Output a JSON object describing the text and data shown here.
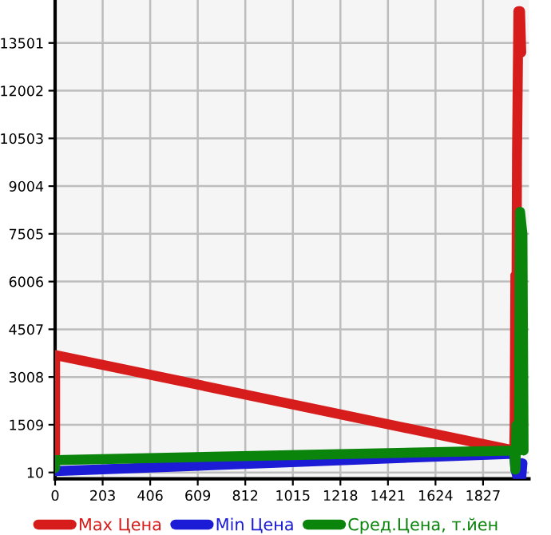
{
  "chart_data": {
    "type": "line",
    "xlim": [
      0,
      2023
    ],
    "ylim": [
      -190,
      14850
    ],
    "xticks": [
      0,
      203,
      406,
      609,
      812,
      1015,
      1218,
      1421,
      1624,
      1827
    ],
    "yticks": [
      10,
      1509,
      3008,
      4507,
      6006,
      7505,
      9004,
      10503,
      12002,
      13501
    ],
    "grid": true,
    "legend": "bottom",
    "line_style": "solid",
    "marker": "none",
    "series": [
      {
        "name": "Max Цена",
        "color": "#d71c1c",
        "x": [
          0,
          0,
          1960,
          1962,
          1965,
          1968,
          1972,
          1978,
          1985,
          1990
        ],
        "values": [
          600,
          3700,
          700,
          1500,
          6200,
          2000,
          10000,
          14500,
          14500,
          13200
        ]
      },
      {
        "name": "Min Цена",
        "color": "#1c1cd7",
        "x": [
          0,
          0,
          1960,
          1965,
          1975,
          1990,
          1995
        ],
        "values": [
          100,
          50,
          600,
          100,
          -150,
          -150,
          300
        ]
      },
      {
        "name": "Сред.Цена, т.йен",
        "color": "#0b840b",
        "x": [
          0,
          0,
          1960,
          1965,
          1970,
          1980,
          1985,
          1995,
          2000
        ],
        "values": [
          150,
          400,
          700,
          100,
          1500,
          700,
          8200,
          7500,
          700
        ]
      }
    ]
  }
}
